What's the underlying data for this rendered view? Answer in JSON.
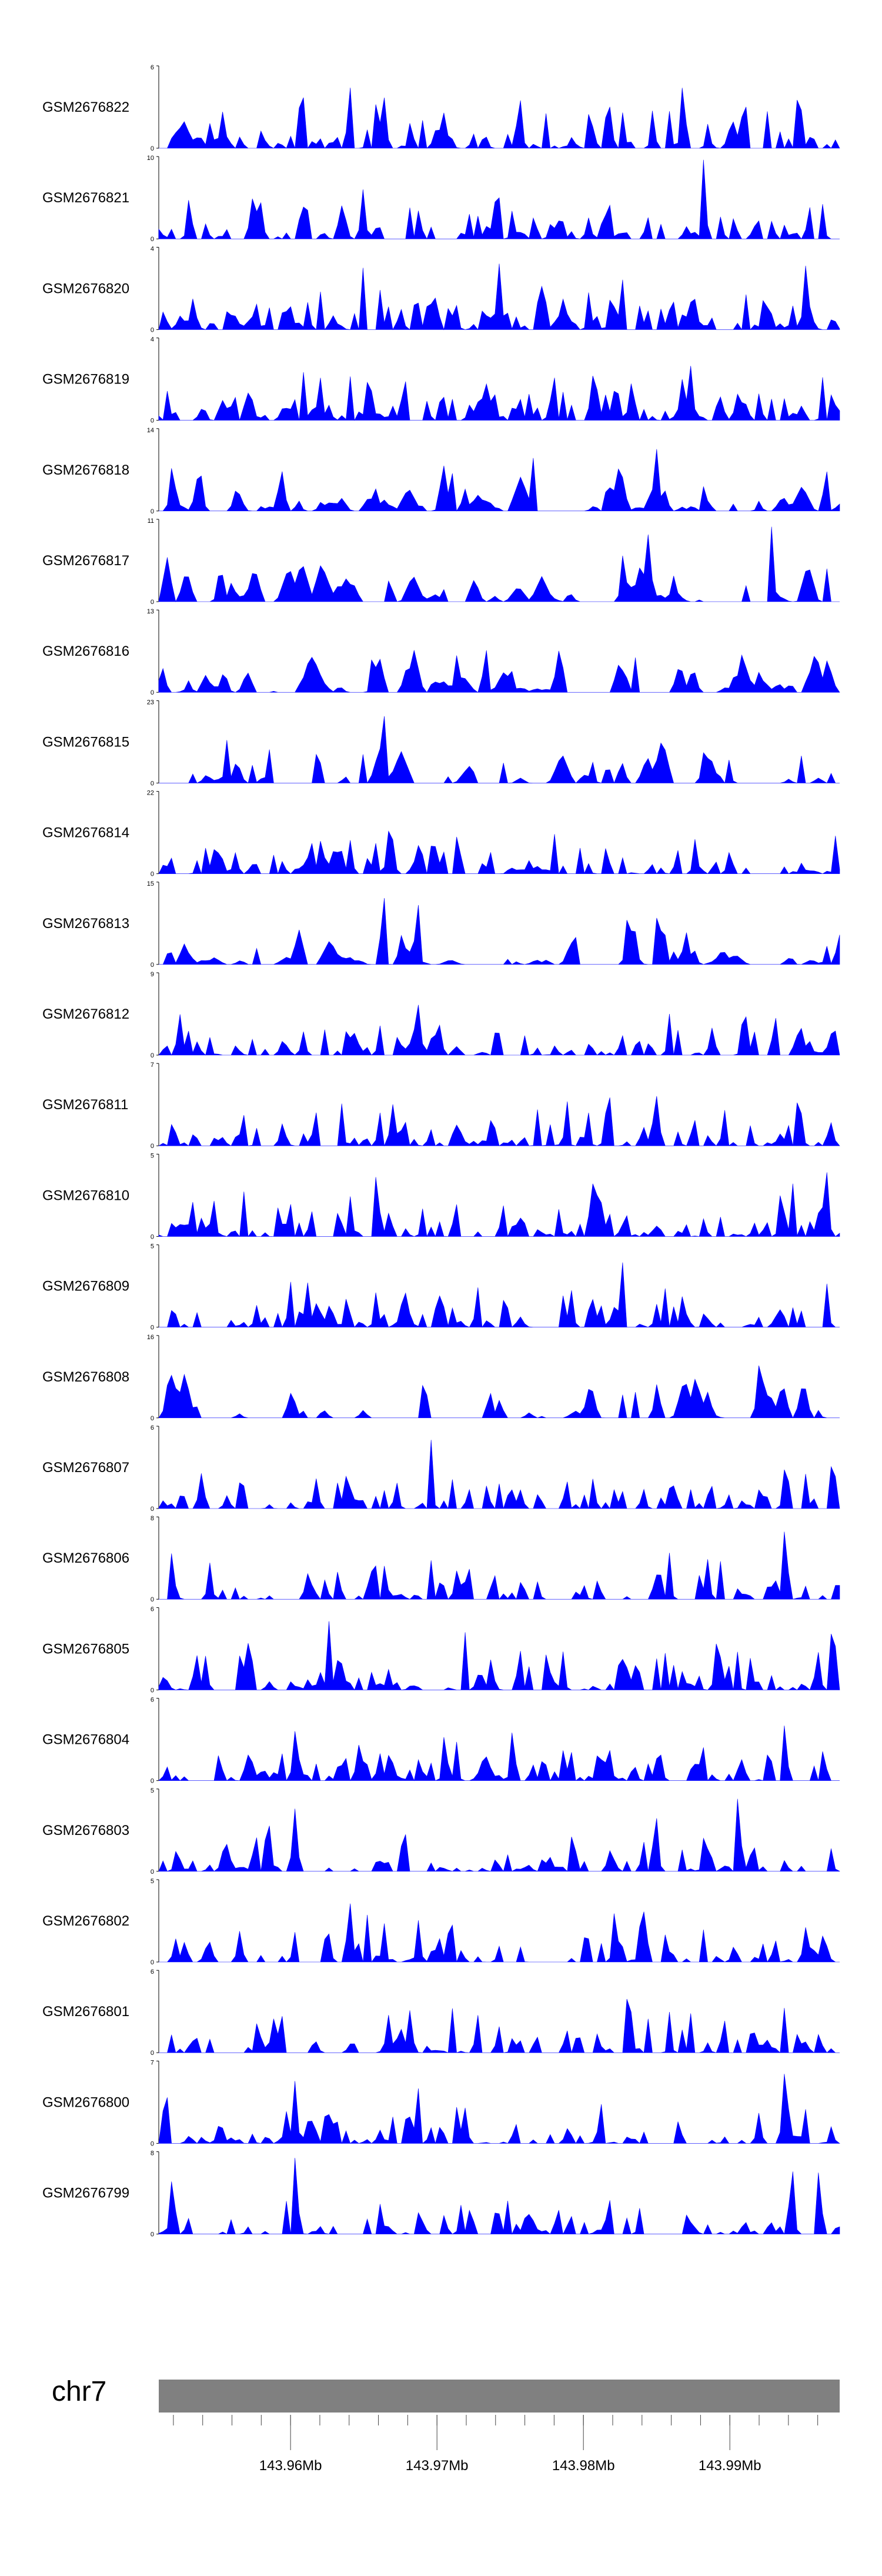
{
  "chart_data": {
    "type": "area",
    "chromosome": "chr7",
    "xlim": [
      143951000,
      143997500
    ],
    "fill_color": "#0000ff",
    "ideogram_color": "#808080",
    "axis_ticks": [
      {
        "pos": 143960000,
        "label": "143.96Mb"
      },
      {
        "pos": 143970000,
        "label": "143.97Mb"
      },
      {
        "pos": 143980000,
        "label": "143.98Mb"
      },
      {
        "pos": 143990000,
        "label": "143.99Mb"
      }
    ],
    "minor_ticks": [
      143952000,
      143954000,
      143956000,
      143958000,
      143960000,
      143962000,
      143964000,
      143966000,
      143968000,
      143970000,
      143972000,
      143974000,
      143976000,
      143978000,
      143980000,
      143982000,
      143984000,
      143986000,
      143988000,
      143990000,
      143992000,
      143994000,
      143996000
    ],
    "tracks": [
      {
        "name": "GSM2676822",
        "ymax": 6,
        "seed": 11,
        "density": 1.0,
        "peaks": [
          [
            0.21,
            5.2
          ],
          [
            0.28,
            5.5
          ],
          [
            0.33,
            4.3
          ],
          [
            0.53,
            4.1
          ],
          [
            0.66,
            4.6
          ],
          [
            0.77,
            6.0
          ],
          [
            0.86,
            4.5
          ],
          [
            0.94,
            5.0
          ]
        ]
      },
      {
        "name": "GSM2676821",
        "ymax": 10,
        "seed": 22,
        "density": 1.0,
        "peaks": [
          [
            0.21,
            7.0
          ],
          [
            0.3,
            6.0
          ],
          [
            0.66,
            6.5
          ],
          [
            0.8,
            9.6
          ],
          [
            0.5,
            5.0
          ]
        ]
      },
      {
        "name": "GSM2676820",
        "ymax": 4,
        "seed": 33,
        "density": 1.6,
        "peaks": [
          [
            0.56,
            3.7
          ],
          [
            0.5,
            3.2
          ],
          [
            0.3,
            3.0
          ],
          [
            0.68,
            3.0
          ],
          [
            0.95,
            3.1
          ]
        ]
      },
      {
        "name": "GSM2676819",
        "ymax": 4,
        "seed": 44,
        "density": 1.4,
        "peaks": [
          [
            0.36,
            3.7
          ],
          [
            0.28,
            3.0
          ],
          [
            0.58,
            3.4
          ],
          [
            0.64,
            3.5
          ],
          [
            0.78,
            3.2
          ],
          [
            0.99,
            2.8
          ]
        ]
      },
      {
        "name": "GSM2676818",
        "ymax": 14,
        "seed": 55,
        "density": 0.5,
        "peaks": [
          [
            0.73,
            13.8
          ],
          [
            0.43,
            8.0
          ],
          [
            0.55,
            9.0
          ],
          [
            0.98,
            8.0
          ],
          [
            0.02,
            8.5
          ],
          [
            0.66,
            5.5
          ]
        ]
      },
      {
        "name": "GSM2676817",
        "ymax": 11,
        "seed": 66,
        "density": 0.45,
        "peaks": [
          [
            0.34,
            5.5
          ],
          [
            0.68,
            9.5
          ],
          [
            0.72,
            11.0
          ],
          [
            0.86,
            9.0
          ],
          [
            0.9,
            10.0
          ],
          [
            0.98,
            7.0
          ]
        ]
      },
      {
        "name": "GSM2676816",
        "ymax": 13,
        "seed": 77,
        "density": 0.45,
        "peaks": [
          [
            0.44,
            12.8
          ],
          [
            0.48,
            8.0
          ],
          [
            0.22,
            5.0
          ],
          [
            0.7,
            5.5
          ],
          [
            0.99,
            7.5
          ]
        ]
      },
      {
        "name": "GSM2676815",
        "ymax": 23,
        "seed": 88,
        "density": 0.35,
        "peaks": [
          [
            0.33,
            22.5
          ],
          [
            0.1,
            12.0
          ],
          [
            0.3,
            8.0
          ]
        ]
      },
      {
        "name": "GSM2676814",
        "ymax": 22,
        "seed": 99,
        "density": 0.9,
        "peaks": [
          [
            0.44,
            21.5
          ],
          [
            0.34,
            16.0
          ],
          [
            0.38,
            9.0
          ]
        ]
      },
      {
        "name": "GSM2676813",
        "ymax": 15,
        "seed": 111,
        "density": 0.45,
        "peaks": [
          [
            0.33,
            14.5
          ],
          [
            0.38,
            13.0
          ],
          [
            0.73,
            14.0
          ],
          [
            0.61,
            7.0
          ],
          [
            0.69,
            12.0
          ]
        ]
      },
      {
        "name": "GSM2676812",
        "ymax": 9,
        "seed": 122,
        "density": 1.0,
        "peaks": [
          [
            0.38,
            8.8
          ],
          [
            0.41,
            5.5
          ],
          [
            0.75,
            4.5
          ],
          [
            0.99,
            4.0
          ]
        ]
      },
      {
        "name": "GSM2676811",
        "ymax": 7,
        "seed": 133,
        "density": 1.0,
        "peaks": [
          [
            0.66,
            6.8
          ],
          [
            0.94,
            5.5
          ],
          [
            0.99,
            5.0
          ],
          [
            0.73,
            5.0
          ],
          [
            0.44,
            3.0
          ]
        ]
      },
      {
        "name": "GSM2676810",
        "ymax": 5,
        "seed": 144,
        "density": 1.1,
        "peaks": [
          [
            0.06,
            4.5
          ],
          [
            0.32,
            4.5
          ],
          [
            0.64,
            4.6
          ],
          [
            0.93,
            4.6
          ],
          [
            0.98,
            4.6
          ]
        ]
      },
      {
        "name": "GSM2676809",
        "ymax": 5,
        "seed": 155,
        "density": 1.0,
        "peaks": [
          [
            0.68,
            4.9
          ],
          [
            0.98,
            3.8
          ],
          [
            0.36,
            3.5
          ],
          [
            0.22,
            3.4
          ]
        ]
      },
      {
        "name": "GSM2676808",
        "ymax": 16,
        "seed": 166,
        "density": 0.3,
        "peaks": [
          [
            0.88,
            15.5
          ],
          [
            0.79,
            12.0
          ],
          [
            0.39,
            10.0
          ],
          [
            0.7,
            5.0
          ]
        ]
      },
      {
        "name": "GSM2676807",
        "ymax": 6,
        "seed": 177,
        "density": 0.9,
        "peaks": [
          [
            0.84,
            5.9
          ],
          [
            0.4,
            5.0
          ],
          [
            0.92,
            4.5
          ],
          [
            0.99,
            4.5
          ]
        ]
      },
      {
        "name": "GSM2676806",
        "ymax": 8,
        "seed": 188,
        "density": 0.8,
        "peaks": [
          [
            0.92,
            7.9
          ],
          [
            0.44,
            5.5
          ],
          [
            0.02,
            5.5
          ],
          [
            0.75,
            4.5
          ]
        ]
      },
      {
        "name": "GSM2676805",
        "ymax": 6,
        "seed": 199,
        "density": 1.2,
        "peaks": [
          [
            0.99,
            5.9
          ],
          [
            0.25,
            5.0
          ],
          [
            0.45,
            4.2
          ],
          [
            0.13,
            4.0
          ]
        ]
      },
      {
        "name": "GSM2676804",
        "ymax": 6,
        "seed": 211,
        "density": 1.0,
        "peaks": [
          [
            0.92,
            5.8
          ],
          [
            0.2,
            3.6
          ],
          [
            0.42,
            3.8
          ],
          [
            0.66,
            4.0
          ]
        ]
      },
      {
        "name": "GSM2676803",
        "ymax": 5,
        "seed": 222,
        "density": 0.9,
        "peaks": [
          [
            0.16,
            4.5
          ],
          [
            0.71,
            4.5
          ],
          [
            0.85,
            4.4
          ],
          [
            0.2,
            3.8
          ],
          [
            0.73,
            3.8
          ]
        ]
      },
      {
        "name": "GSM2676802",
        "ymax": 5,
        "seed": 233,
        "density": 0.8,
        "peaks": [
          [
            0.71,
            4.9
          ],
          [
            0.28,
            4.3
          ],
          [
            0.67,
            3.5
          ],
          [
            0.96,
            3.0
          ]
        ]
      },
      {
        "name": "GSM2676801",
        "ymax": 6,
        "seed": 244,
        "density": 0.8,
        "peaks": [
          [
            0.69,
            5.8
          ],
          [
            0.37,
            4.5
          ],
          [
            0.43,
            4.4
          ],
          [
            0.92,
            4.4
          ],
          [
            0.18,
            3.5
          ]
        ]
      },
      {
        "name": "GSM2676800",
        "ymax": 7,
        "seed": 255,
        "density": 0.8,
        "peaks": [
          [
            0.92,
            6.9
          ],
          [
            0.01,
            6.2
          ],
          [
            0.2,
            5.3
          ],
          [
            0.38,
            5.8
          ],
          [
            0.88,
            4.4
          ]
        ]
      },
      {
        "name": "GSM2676799",
        "ymax": 8,
        "seed": 266,
        "density": 0.8,
        "peaks": [
          [
            0.02,
            7.7
          ],
          [
            0.2,
            7.4
          ],
          [
            0.66,
            7.6
          ],
          [
            0.93,
            7.2
          ],
          [
            0.97,
            7.3
          ],
          [
            0.39,
            6.0
          ]
        ]
      }
    ]
  }
}
